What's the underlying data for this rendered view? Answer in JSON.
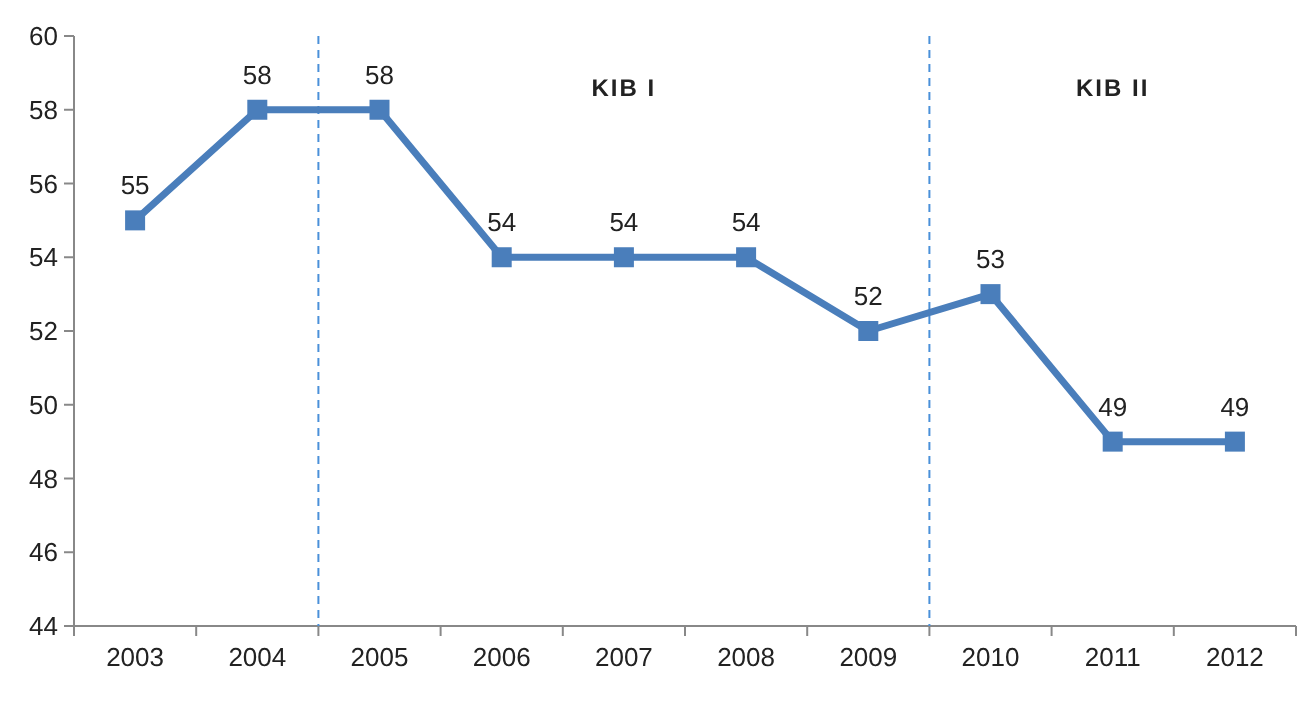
{
  "chart_data": {
    "type": "line",
    "categories": [
      "2003",
      "2004",
      "2005",
      "2006",
      "2007",
      "2008",
      "2009",
      "2010",
      "2011",
      "2012"
    ],
    "series": [
      {
        "color": "#4a7ebb",
        "values": [
          55,
          58,
          58,
          54,
          54,
          54,
          52,
          53,
          49,
          49
        ]
      }
    ],
    "ylim": [
      44,
      60
    ],
    "yticks": [
      44,
      46,
      48,
      50,
      52,
      54,
      56,
      58,
      60
    ],
    "marker": "square",
    "data_labels": true,
    "grid": false,
    "annotations": [
      "KIB I",
      "KIB II"
    ]
  }
}
